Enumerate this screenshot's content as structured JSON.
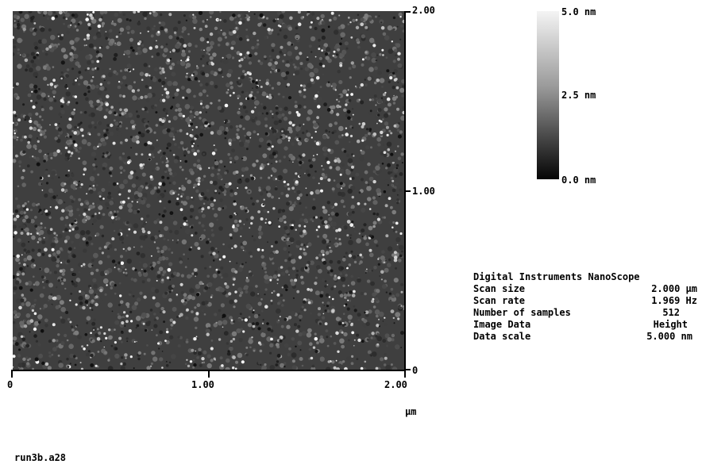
{
  "image": {
    "y_ticks": [
      "2.00",
      "1.00",
      "0"
    ],
    "x_ticks": [
      "0",
      "1.00",
      "2.00"
    ],
    "unit": "µm"
  },
  "color_scale": {
    "top": "5.0 nm",
    "middle": "2.5 nm",
    "bottom": "0.0 nm"
  },
  "info": {
    "header": "Digital Instruments NanoScope",
    "rows": [
      {
        "label": "Scan size",
        "value": "2.000 µm"
      },
      {
        "label": "Scan rate",
        "value": "1.969 Hz"
      },
      {
        "label": "Number of samples",
        "value": "512"
      },
      {
        "label": "Image Data",
        "value": "Height"
      },
      {
        "label": "Data scale",
        "value": "5.000 nm"
      }
    ]
  },
  "filename": "run3b.a28"
}
